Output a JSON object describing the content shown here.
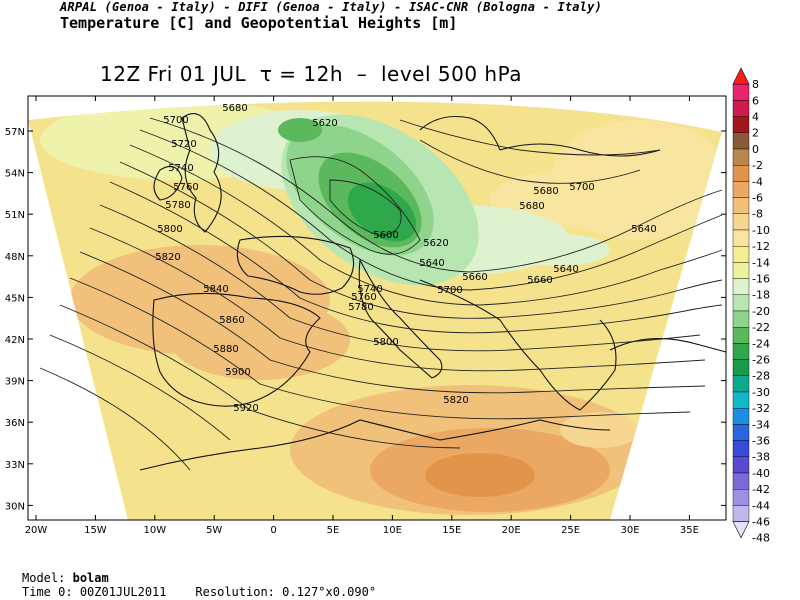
{
  "header": {
    "institutions": "ARPAL (Genoa - Italy)  -  DIFI (Genoa - Italy)  -  ISAC-CNR (Bologna - Italy)",
    "product": "Temperature [C] and Geopotential Heights [m]"
  },
  "map": {
    "title": "12Z Fri 01 JUL  τ = 12h  –  level 500 hPa",
    "lat_ticks": [
      "57N",
      "54N",
      "51N",
      "48N",
      "45N",
      "42N",
      "39N",
      "36N",
      "33N",
      "30N"
    ],
    "lon_ticks": [
      "20W",
      "15W",
      "10W",
      "5W",
      "0",
      "5E",
      "10E",
      "15E",
      "20E",
      "25E",
      "30E",
      "35E"
    ],
    "contour_labels": [
      "5680",
      "5700",
      "5620",
      "5720",
      "5740",
      "5760",
      "5780",
      "5800",
      "5820",
      "5840",
      "5860",
      "5880",
      "5900",
      "5920",
      "5600",
      "5620",
      "5640",
      "5660",
      "5680",
      "5700",
      "5640",
      "5640",
      "5660",
      "5680",
      "5700",
      "5740",
      "5760",
      "5780",
      "5800",
      "5820"
    ]
  },
  "colorbar": {
    "labels": [
      "8",
      "6",
      "4",
      "2",
      "0",
      "-2",
      "-4",
      "-6",
      "-8",
      "-10",
      "-12",
      "-14",
      "-16",
      "-18",
      "-20",
      "-22",
      "-24",
      "-26",
      "-28",
      "-30",
      "-32",
      "-34",
      "-36",
      "-38",
      "-40",
      "-42",
      "-44",
      "-46",
      "-48"
    ],
    "colors": [
      "#ff1a1a",
      "#e8236e",
      "#cc1c4a",
      "#a01818",
      "#8a5a3a",
      "#b8864e",
      "#e3944a",
      "#eba862",
      "#f1c07a",
      "#f6d690",
      "#f8e6a0",
      "#f4ee8c",
      "#eef29a",
      "#dff2d0",
      "#b7e6b2",
      "#8fd48c",
      "#5cb85c",
      "#2ea84a",
      "#1a9a4a",
      "#10a88a",
      "#12b8c8",
      "#1e8ee0",
      "#2a66e0",
      "#3a4ad8",
      "#5a4ad0",
      "#7a6ad8",
      "#9c90e0",
      "#c0b8ec",
      "#e4e0f6"
    ]
  },
  "footer": {
    "model_label": "Model:",
    "model_value": "bolam",
    "time_label": "Time 0:",
    "time_value": "00Z01JUL2011",
    "res_label": "Resolution:",
    "res_value": "0.127°x0.090°"
  }
}
